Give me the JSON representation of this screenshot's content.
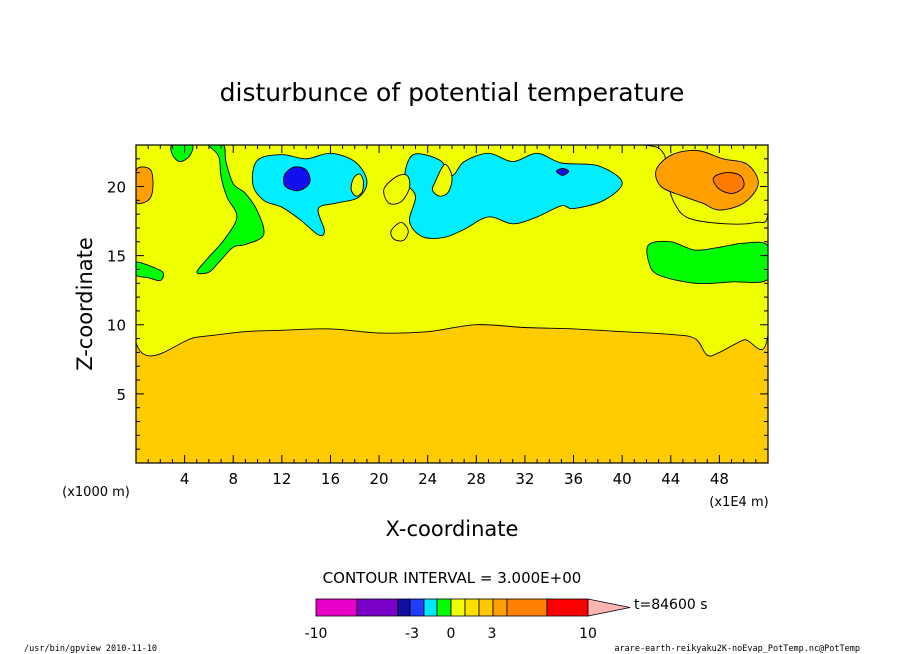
{
  "chart_data": {
    "type": "contour",
    "title": "disturbunce of potential temperature",
    "xlabel": "X-coordinate",
    "ylabel": "Z-coordinate",
    "x_unit_left": "(x1000 m)",
    "x_unit_right": "(x1E4 m)",
    "xlim": [
      0,
      52
    ],
    "ylim": [
      0,
      23
    ],
    "xticks": [
      4,
      8,
      12,
      16,
      20,
      24,
      28,
      32,
      36,
      40,
      44,
      48
    ],
    "yticks": [
      5,
      10,
      15,
      20
    ],
    "contour_interval_text": "CONTOUR INTERVAL = 3.000E+00",
    "time_text": "t=84600 s",
    "colorbar": {
      "tick_labels": [
        "-10",
        "-3",
        "0",
        "3",
        "10"
      ],
      "tick_values": [
        -10,
        -3,
        0,
        3,
        10
      ],
      "colors": [
        "#e800c8",
        "#7b00c8",
        "#1010a0",
        "#1f3cff",
        "#00e8ff",
        "#00ff00",
        "#f0ff00",
        "#ffe000",
        "#ffc800",
        "#ffa000",
        "#ff8000",
        "#ff0000",
        "#ff7878",
        "#ffb4b4"
      ]
    },
    "fill_colors": {
      "background": "#ffcc00",
      "yellow": "#f0ff00",
      "green": "#00ff00",
      "cyan": "#00eeff",
      "blue": "#1010ee",
      "orange": "#ffa000",
      "dark_orange": "#ff7a00"
    },
    "regions": [
      {
        "level": "yellow",
        "points": [
          [
            0,
            8.7
          ],
          [
            5,
            9.1
          ],
          [
            9,
            9.5
          ],
          [
            12,
            9.6
          ],
          [
            16,
            9.7
          ],
          [
            20,
            9.4
          ],
          [
            24,
            9.5
          ],
          [
            28,
            10.0
          ],
          [
            32,
            9.8
          ],
          [
            36,
            9.7
          ],
          [
            40,
            9.5
          ],
          [
            44,
            9.3
          ],
          [
            46,
            9.0
          ],
          [
            47,
            7.8
          ],
          [
            48,
            8.0
          ],
          [
            50,
            8.9
          ],
          [
            52,
            9.3
          ],
          [
            52,
            23
          ],
          [
            0,
            23
          ]
        ]
      },
      {
        "level": "orange",
        "points": [
          [
            0,
            21.0
          ],
          [
            0.4,
            21.4
          ],
          [
            1.2,
            21.2
          ],
          [
            1.4,
            20.2
          ],
          [
            1.2,
            19.2
          ],
          [
            0.5,
            18.8
          ],
          [
            0,
            19.0
          ]
        ]
      },
      {
        "level": "green",
        "points": [
          [
            0,
            14.5
          ],
          [
            1,
            14.3
          ],
          [
            2.2,
            13.8
          ],
          [
            2,
            13.2
          ],
          [
            1,
            13.4
          ],
          [
            0,
            13.6
          ]
        ]
      },
      {
        "level": "green",
        "points": [
          [
            6,
            23
          ],
          [
            7.2,
            23
          ],
          [
            7.4,
            21.8
          ],
          [
            8,
            20.2
          ],
          [
            9,
            19.5
          ],
          [
            10,
            18.2
          ],
          [
            10.5,
            16.5
          ],
          [
            9,
            15.8
          ],
          [
            8,
            15.6
          ],
          [
            6.8,
            14.5
          ],
          [
            6,
            13.8
          ],
          [
            5,
            13.8
          ],
          [
            6,
            14.9
          ],
          [
            7.3,
            16.2
          ],
          [
            8.3,
            17.8
          ],
          [
            7.5,
            19.2
          ],
          [
            7,
            20.7
          ],
          [
            6.8,
            22.2
          ]
        ]
      },
      {
        "level": "green",
        "points": [
          [
            3,
            23
          ],
          [
            4.6,
            23
          ],
          [
            4.4,
            22.2
          ],
          [
            3.6,
            21.8
          ],
          [
            3,
            22.3
          ]
        ]
      },
      {
        "level": "green",
        "points": [
          [
            42.2,
            15.8
          ],
          [
            44,
            16.0
          ],
          [
            46,
            15.4
          ],
          [
            48,
            15.6
          ],
          [
            50,
            15.9
          ],
          [
            52,
            15.7
          ],
          [
            52,
            13.3
          ],
          [
            49,
            13.1
          ],
          [
            46,
            13.0
          ],
          [
            43,
            13.6
          ],
          [
            42.2,
            14.5
          ]
        ]
      },
      {
        "level": "cyan",
        "points": [
          [
            10,
            21.9
          ],
          [
            12,
            22.3
          ],
          [
            14,
            22.0
          ],
          [
            16,
            22.4
          ],
          [
            18,
            21.8
          ],
          [
            19,
            20.4
          ],
          [
            18.3,
            19.2
          ],
          [
            16.5,
            18.8
          ],
          [
            15,
            18.4
          ],
          [
            15.5,
            16.8
          ],
          [
            15,
            16.5
          ],
          [
            13.5,
            17.6
          ],
          [
            12,
            18.5
          ],
          [
            10.5,
            19.0
          ],
          [
            9.6,
            20.2
          ]
        ]
      },
      {
        "level": "cyan",
        "points": [
          [
            22.8,
            22.3
          ],
          [
            25,
            21.9
          ],
          [
            26,
            20.8
          ],
          [
            27,
            21.8
          ],
          [
            29,
            22.4
          ],
          [
            31,
            21.8
          ],
          [
            33,
            22.4
          ],
          [
            35,
            21.7
          ],
          [
            38,
            21.5
          ],
          [
            40,
            20.3
          ],
          [
            38.5,
            19.0
          ],
          [
            36,
            18.4
          ],
          [
            35,
            18.6
          ],
          [
            33,
            17.8
          ],
          [
            31,
            17.3
          ],
          [
            29,
            17.8
          ],
          [
            27,
            16.9
          ],
          [
            25.3,
            16.3
          ],
          [
            23.5,
            16.4
          ],
          [
            22.5,
            17.5
          ],
          [
            23,
            19.3
          ],
          [
            22.1,
            20.5
          ]
        ]
      },
      {
        "level": "yellow",
        "points": [
          [
            17.9,
            20.6
          ],
          [
            18.4,
            20.9
          ],
          [
            18.7,
            20.4
          ],
          [
            18.6,
            19.6
          ],
          [
            18.1,
            19.3
          ],
          [
            17.7,
            19.8
          ]
        ]
      },
      {
        "level": "yellow",
        "points": [
          [
            20.4,
            19.8
          ],
          [
            21.4,
            20.7
          ],
          [
            22.3,
            20.8
          ],
          [
            22.5,
            19.9
          ],
          [
            21.8,
            18.9
          ],
          [
            20.8,
            18.8
          ]
        ]
      },
      {
        "level": "yellow",
        "points": [
          [
            24.6,
            20.3
          ],
          [
            25.4,
            21.6
          ],
          [
            26.0,
            20.7
          ],
          [
            25.7,
            19.6
          ],
          [
            25.0,
            19.3
          ],
          [
            24.4,
            19.7
          ]
        ]
      },
      {
        "level": "yellow",
        "points": [
          [
            21.0,
            16.8
          ],
          [
            21.8,
            17.4
          ],
          [
            22.4,
            16.8
          ],
          [
            22.0,
            16.1
          ],
          [
            21.2,
            16.2
          ]
        ]
      },
      {
        "level": "yellow",
        "points": [
          [
            35.5,
            23
          ],
          [
            52,
            23
          ],
          [
            52,
            18.0
          ],
          [
            51,
            17.4
          ],
          [
            48.5,
            17.3
          ],
          [
            45.5,
            17.7
          ],
          [
            44.3,
            18.8
          ],
          [
            43.7,
            20.5
          ],
          [
            43.4,
            22.4
          ],
          [
            41.7,
            23
          ]
        ]
      },
      {
        "level": "orange",
        "points": [
          [
            42.8,
            21.2
          ],
          [
            44.1,
            22.3
          ],
          [
            46.2,
            22.6
          ],
          [
            48.3,
            22.0
          ],
          [
            50.3,
            21.6
          ],
          [
            51.2,
            20.2
          ],
          [
            50,
            18.8
          ],
          [
            48,
            18.3
          ],
          [
            46.6,
            18.8
          ],
          [
            45.0,
            19.3
          ],
          [
            43.2,
            20.0
          ]
        ]
      },
      {
        "level": "dark_orange",
        "points": [
          [
            47.5,
            20.6
          ],
          [
            48.5,
            21.0
          ],
          [
            49.7,
            20.8
          ],
          [
            50.0,
            20.0
          ],
          [
            49.1,
            19.5
          ],
          [
            48.0,
            19.8
          ]
        ]
      },
      {
        "level": "blue",
        "points": [
          [
            12.2,
            20.8
          ],
          [
            13.0,
            21.4
          ],
          [
            14.0,
            21.2
          ],
          [
            14.3,
            20.3
          ],
          [
            13.4,
            19.7
          ],
          [
            12.3,
            20.0
          ]
        ]
      },
      {
        "level": "blue",
        "points": [
          [
            34.6,
            21.1
          ],
          [
            35.1,
            21.3
          ],
          [
            35.6,
            21.1
          ],
          [
            35.1,
            20.8
          ]
        ]
      }
    ]
  },
  "footer": {
    "left": "/usr/bin/gpview   2010-11-10",
    "right": "arare-earth-reikyaku2K-noEvap_PotTemp.nc@PotTemp"
  }
}
